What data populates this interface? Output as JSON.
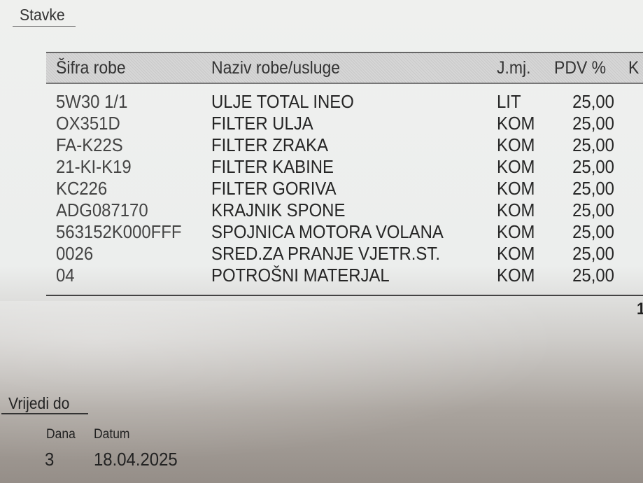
{
  "sections": {
    "items_title": "Stavke",
    "valid_title": "Vrijedi do"
  },
  "table": {
    "headers": {
      "code": "Šifra robe",
      "name": "Naziv robe/usluge",
      "unit": "J.mj.",
      "vat": "PDV %",
      "next": "K"
    },
    "rows": [
      {
        "code": "5W30 1/1",
        "name": "ULJE TOTAL INEO",
        "unit": "LIT",
        "vat": "25,00"
      },
      {
        "code": "OX351D",
        "name": "FILTER ULJA",
        "unit": "KOM",
        "vat": "25,00"
      },
      {
        "code": "FA-K22S",
        "name": "FILTER ZRAKA",
        "unit": "KOM",
        "vat": "25,00"
      },
      {
        "code": "21-KI-K19",
        "name": "FILTER KABINE",
        "unit": "KOM",
        "vat": "25,00"
      },
      {
        "code": "KC226",
        "name": "FILTER GORIVA",
        "unit": "KOM",
        "vat": "25,00"
      },
      {
        "code": "ADG087170",
        "name": "KRAJNIK SPONE",
        "unit": "KOM",
        "vat": "25,00"
      },
      {
        "code": "563152K000FFF",
        "name": "SPOJNICA MOTORA VOLANA",
        "unit": "KOM",
        "vat": "25,00"
      },
      {
        "code": "0026",
        "name": "SRED.ZA PRANJE VJETR.ST.",
        "unit": "KOM",
        "vat": "25,00"
      },
      {
        "code": "04",
        "name": "POTROŠNI MATERJAL",
        "unit": "KOM",
        "vat": "25,00"
      }
    ],
    "footer_partial": "1"
  },
  "validity": {
    "days_label": "Dana",
    "date_label": "Datum",
    "days": "3",
    "date": "18.04.2025"
  }
}
